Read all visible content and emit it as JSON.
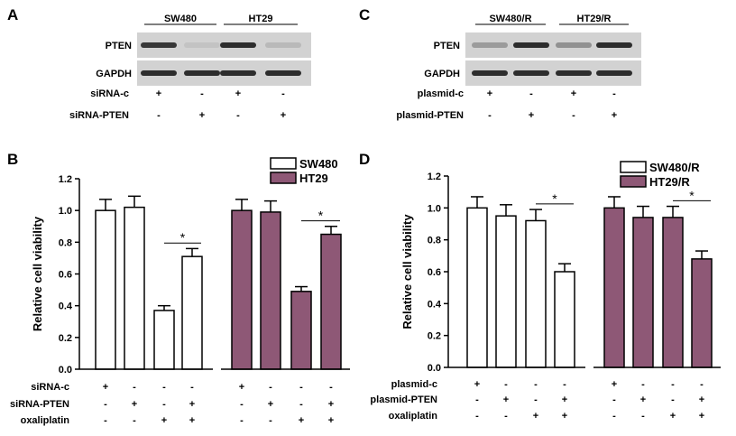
{
  "colors": {
    "sw_bar": "#ffffff",
    "ht_bar": "#8e5876",
    "axis": "#000000"
  },
  "panel_labels": {
    "A": "A",
    "B": "B",
    "C": "C",
    "D": "D"
  },
  "blot_a": {
    "groups": [
      "SW480",
      "HT29"
    ],
    "rows": [
      "PTEN",
      "GAPDH"
    ],
    "pten_intensity": [
      0.85,
      0.15,
      0.9,
      0.2
    ],
    "gapdh_intensity": [
      0.9,
      0.9,
      0.9,
      0.9
    ],
    "conditions": [
      {
        "label": "siRNA-c",
        "marks": [
          "+",
          "-",
          "+",
          "-"
        ]
      },
      {
        "label": "siRNA-PTEN",
        "marks": [
          "-",
          "+",
          "-",
          "+"
        ]
      }
    ]
  },
  "blot_c": {
    "groups": [
      "SW480/R",
      "HT29/R"
    ],
    "rows": [
      "PTEN",
      "GAPDH"
    ],
    "pten_intensity": [
      0.35,
      0.9,
      0.4,
      0.9
    ],
    "gapdh_intensity": [
      0.9,
      0.9,
      0.9,
      0.9
    ],
    "conditions": [
      {
        "label": "plasmid-c",
        "marks": [
          "+",
          "-",
          "+",
          "-"
        ]
      },
      {
        "label": "plasmid-PTEN",
        "marks": [
          "-",
          "+",
          "-",
          "+"
        ]
      }
    ]
  },
  "chart_data": [
    {
      "id": "B",
      "type": "bar",
      "ylabel": "Relative cell viability",
      "ylim": [
        0,
        1.2
      ],
      "yticks": [
        "0.0",
        "0.2",
        "0.4",
        "0.6",
        "0.8",
        "1.0",
        "1.2"
      ],
      "legend": [
        "SW480",
        "HT29"
      ],
      "legend_position": "top-right",
      "series": [
        {
          "name": "SW480",
          "values": [
            1.0,
            1.02,
            0.37,
            0.71
          ],
          "errors": [
            0.07,
            0.07,
            0.03,
            0.05
          ]
        },
        {
          "name": "HT29",
          "values": [
            1.0,
            0.99,
            0.49,
            0.85
          ],
          "errors": [
            0.07,
            0.07,
            0.03,
            0.05
          ]
        }
      ],
      "significance": [
        "*",
        "*"
      ],
      "conditions": [
        {
          "label": "siRNA-c",
          "marks": [
            "+",
            "-",
            "-",
            "-",
            "+",
            "-",
            "-",
            "-"
          ]
        },
        {
          "label": "siRNA-PTEN",
          "marks": [
            "-",
            "+",
            "-",
            "+",
            "-",
            "+",
            "-",
            "+"
          ]
        },
        {
          "label": "oxaliplatin",
          "marks": [
            "-",
            "-",
            "+",
            "+",
            "-",
            "-",
            "+",
            "+"
          ]
        }
      ]
    },
    {
      "id": "D",
      "type": "bar",
      "ylabel": "Relative cell viability",
      "ylim": [
        0,
        1.2
      ],
      "yticks": [
        "0.0",
        "0.2",
        "0.4",
        "0.6",
        "0.8",
        "1.0",
        "1.2"
      ],
      "legend": [
        "SW480/R",
        "HT29/R"
      ],
      "legend_position": "top-right",
      "series": [
        {
          "name": "SW480/R",
          "values": [
            1.0,
            0.95,
            0.92,
            0.6
          ],
          "errors": [
            0.07,
            0.07,
            0.07,
            0.05
          ]
        },
        {
          "name": "HT29/R",
          "values": [
            1.0,
            0.94,
            0.94,
            0.68
          ],
          "errors": [
            0.07,
            0.07,
            0.07,
            0.05
          ]
        }
      ],
      "significance": [
        "*",
        "*"
      ],
      "conditions": [
        {
          "label": "plasmid-c",
          "marks": [
            "+",
            "-",
            "-",
            "-",
            "+",
            "-",
            "-",
            "-"
          ]
        },
        {
          "label": "plasmid-PTEN",
          "marks": [
            "-",
            "+",
            "-",
            "+",
            "-",
            "+",
            "-",
            "+"
          ]
        },
        {
          "label": "oxaliplatin",
          "marks": [
            "-",
            "-",
            "+",
            "+",
            "-",
            "-",
            "+",
            "+"
          ]
        }
      ]
    }
  ]
}
